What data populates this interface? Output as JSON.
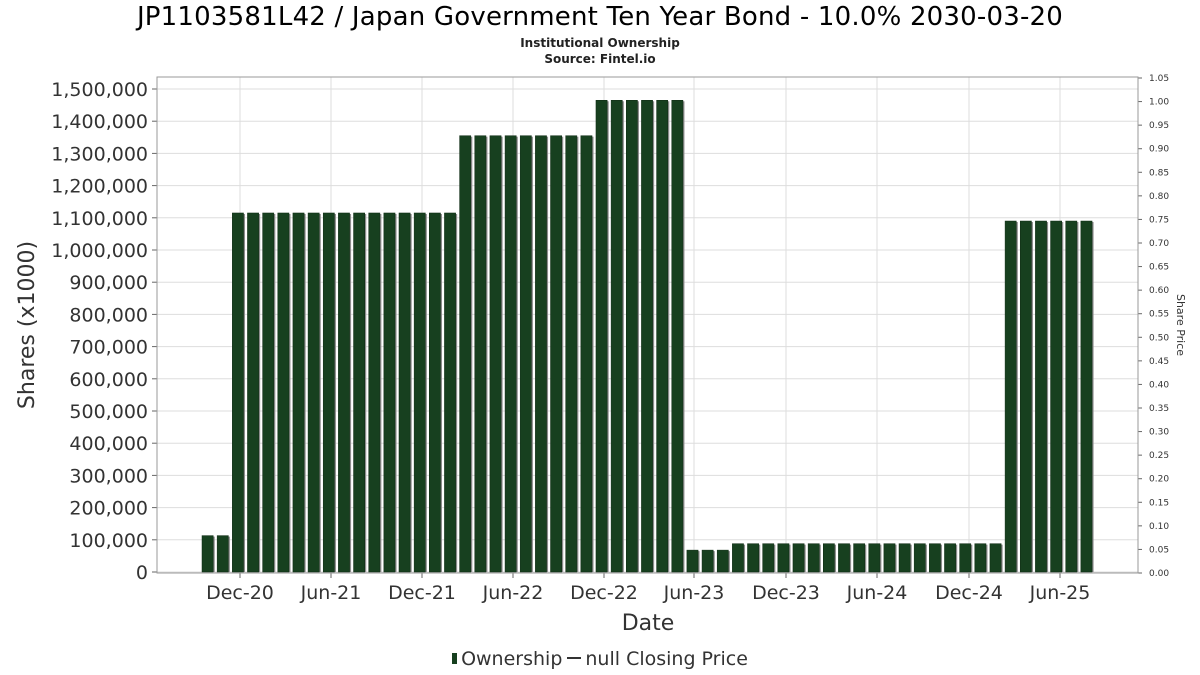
{
  "header": {
    "title": "JP1103581L42 / Japan Government Ten Year Bond - 10.0% 2030-03-20",
    "subtitle": "Institutional Ownership",
    "source": "Source: Fintel.io"
  },
  "legend": {
    "ownership_label": "Ownership",
    "price_label": "null Closing Price"
  },
  "colors": {
    "bar": "#17401f",
    "bar_shadow": "#8c8c8c",
    "grid": "#dddddd",
    "plot_border": "#999999"
  },
  "chart_data": {
    "type": "bar",
    "xlabel": "Date",
    "ylabel": "Shares (x1000)",
    "y2label": "Share Price",
    "ylim": [
      0,
      1550000
    ],
    "y2lim": [
      0,
      1.05
    ],
    "yticks": [
      "0",
      "100,000",
      "200,000",
      "300,000",
      "400,000",
      "500,000",
      "600,000",
      "700,000",
      "800,000",
      "900,000",
      "1,000,000",
      "1,100,000",
      "1,200,000",
      "1,300,000",
      "1,400,000",
      "1,500,000"
    ],
    "y2ticks": [
      "0.00",
      "0.05",
      "0.10",
      "0.15",
      "0.20",
      "0.25",
      "0.30",
      "0.35",
      "0.40",
      "0.45",
      "0.50",
      "0.55",
      "0.60",
      "0.65",
      "0.70",
      "0.75",
      "0.80",
      "0.85",
      "0.90",
      "0.95",
      "1.00",
      "1.05"
    ],
    "xticks": [
      "Dec-20",
      "Jun-21",
      "Dec-21",
      "Jun-22",
      "Dec-22",
      "Jun-23",
      "Dec-23",
      "Jun-24",
      "Dec-24",
      "Jun-25"
    ],
    "grid": true,
    "legend_position": "bottom",
    "series": [
      {
        "name": "Ownership",
        "values": [
          113000,
          113000,
          1115000,
          1115000,
          1115000,
          1115000,
          1115000,
          1115000,
          1115000,
          1115000,
          1115000,
          1115000,
          1115000,
          1115000,
          1115000,
          1115000,
          1115000,
          1355000,
          1355000,
          1355000,
          1355000,
          1355000,
          1355000,
          1355000,
          1355000,
          1355000,
          1465000,
          1465000,
          1465000,
          1465000,
          1465000,
          1465000,
          68000,
          68000,
          68000,
          88000,
          88000,
          88000,
          88000,
          88000,
          88000,
          88000,
          88000,
          88000,
          88000,
          88000,
          88000,
          88000,
          88000,
          88000,
          88000,
          88000,
          88000,
          1090000,
          1090000,
          1090000,
          1090000,
          1090000,
          1090000
        ]
      }
    ]
  }
}
